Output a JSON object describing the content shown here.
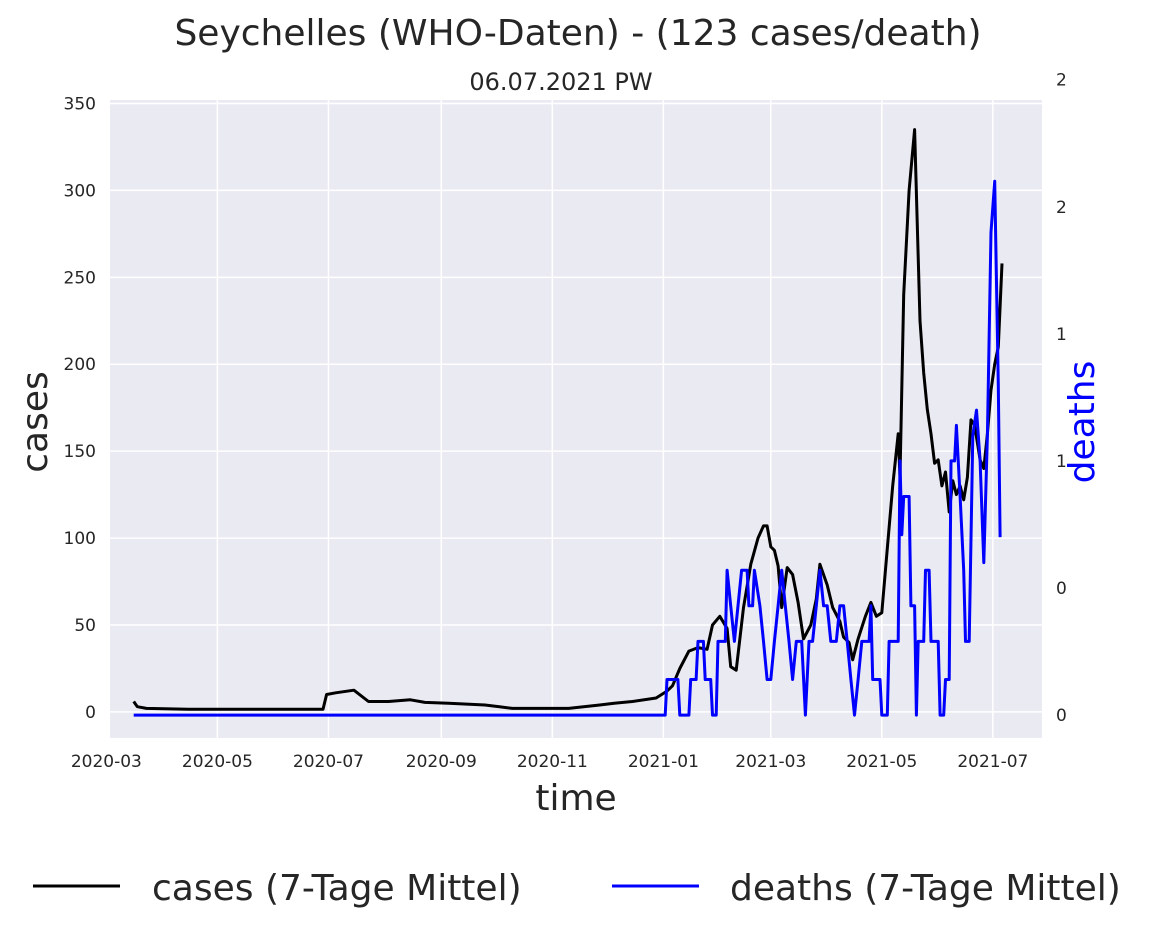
{
  "chart_data": {
    "type": "line",
    "title": "Seychelles (WHO-Daten) - (123 cases/death)",
    "subtitle": "06.07.2021 PW",
    "xlabel": "time",
    "ylabel": "cases",
    "y2label": "deaths",
    "grid": true,
    "legend_placement": "bottom",
    "xlim": [
      "2020-03-03",
      "2021-07-28"
    ],
    "ylim": [
      -15,
      352
    ],
    "y2lim": [
      -0.09,
      2.42
    ],
    "x_ticks": [
      "2020-03",
      "2020-05",
      "2020-07",
      "2020-09",
      "2020-11",
      "2021-01",
      "2021-03",
      "2021-05",
      "2021-07"
    ],
    "y_ticks": [
      "0",
      "50",
      "100",
      "150",
      "200",
      "250",
      "300",
      "350"
    ],
    "y2_ticks": [
      "0",
      "0",
      "1",
      "1",
      "2",
      "2"
    ],
    "y2_tick_values": [
      0,
      0.5,
      1.0,
      1.5,
      2.0,
      2.5
    ],
    "colors": {
      "cases": "#000000",
      "deaths": "#0000ff",
      "plot_bg": "#eaeaf2",
      "grid": "#ffffff"
    },
    "series": [
      {
        "name": "cases (7-Tage Mittel)",
        "axis": "left",
        "points": [
          [
            "2020-03-16",
            6
          ],
          [
            "2020-03-18",
            3
          ],
          [
            "2020-03-23",
            2
          ],
          [
            "2020-04-15",
            1.5
          ],
          [
            "2020-06-28",
            1.5
          ],
          [
            "2020-06-30",
            10
          ],
          [
            "2020-07-05",
            11
          ],
          [
            "2020-07-15",
            12.5
          ],
          [
            "2020-07-23",
            6
          ],
          [
            "2020-08-03",
            6
          ],
          [
            "2020-08-15",
            7
          ],
          [
            "2020-08-23",
            5.5
          ],
          [
            "2020-09-05",
            5
          ],
          [
            "2020-09-25",
            4
          ],
          [
            "2020-10-03",
            3
          ],
          [
            "2020-10-10",
            2
          ],
          [
            "2020-10-25",
            2
          ],
          [
            "2020-11-10",
            2
          ],
          [
            "2020-11-27",
            4
          ],
          [
            "2020-12-05",
            5
          ],
          [
            "2020-12-15",
            6
          ],
          [
            "2020-12-28",
            8
          ],
          [
            "2021-01-03",
            12
          ],
          [
            "2021-01-06",
            15
          ],
          [
            "2021-01-10",
            25
          ],
          [
            "2021-01-15",
            35
          ],
          [
            "2021-01-20",
            37
          ],
          [
            "2021-01-25",
            36
          ],
          [
            "2021-01-28",
            50
          ],
          [
            "2021-02-01",
            55
          ],
          [
            "2021-02-05",
            48
          ],
          [
            "2021-02-07",
            26
          ],
          [
            "2021-02-10",
            24
          ],
          [
            "2021-02-14",
            60
          ],
          [
            "2021-02-18",
            85
          ],
          [
            "2021-02-22",
            100
          ],
          [
            "2021-02-25",
            107
          ],
          [
            "2021-02-27",
            107
          ],
          [
            "2021-03-01",
            95
          ],
          [
            "2021-03-03",
            93
          ],
          [
            "2021-03-05",
            84
          ],
          [
            "2021-03-07",
            60
          ],
          [
            "2021-03-10",
            83
          ],
          [
            "2021-03-13",
            79
          ],
          [
            "2021-03-16",
            63
          ],
          [
            "2021-03-19",
            42
          ],
          [
            "2021-03-23",
            50
          ],
          [
            "2021-03-26",
            65
          ],
          [
            "2021-03-28",
            85
          ],
          [
            "2021-04-01",
            73
          ],
          [
            "2021-04-04",
            60
          ],
          [
            "2021-04-08",
            52
          ],
          [
            "2021-04-10",
            43
          ],
          [
            "2021-04-13",
            40
          ],
          [
            "2021-04-15",
            30
          ],
          [
            "2021-04-18",
            42
          ],
          [
            "2021-04-22",
            55
          ],
          [
            "2021-04-25",
            63
          ],
          [
            "2021-04-28",
            55
          ],
          [
            "2021-05-01",
            57
          ],
          [
            "2021-05-04",
            94
          ],
          [
            "2021-05-07",
            130
          ],
          [
            "2021-05-10",
            160
          ],
          [
            "2021-05-11",
            135
          ],
          [
            "2021-05-13",
            240
          ],
          [
            "2021-05-16",
            300
          ],
          [
            "2021-05-19",
            335
          ],
          [
            "2021-05-22",
            225
          ],
          [
            "2021-05-24",
            195
          ],
          [
            "2021-05-26",
            174
          ],
          [
            "2021-05-28",
            160
          ],
          [
            "2021-05-30",
            143
          ],
          [
            "2021-06-01",
            145
          ],
          [
            "2021-06-03",
            130
          ],
          [
            "2021-06-05",
            138
          ],
          [
            "2021-06-07",
            115
          ],
          [
            "2021-06-09",
            133
          ],
          [
            "2021-06-11",
            125
          ],
          [
            "2021-06-13",
            130
          ],
          [
            "2021-06-15",
            122
          ],
          [
            "2021-06-17",
            135
          ],
          [
            "2021-06-19",
            168
          ],
          [
            "2021-06-21",
            165
          ],
          [
            "2021-06-24",
            145
          ],
          [
            "2021-06-26",
            140
          ],
          [
            "2021-06-28",
            160
          ],
          [
            "2021-06-30",
            185
          ],
          [
            "2021-07-02",
            200
          ],
          [
            "2021-07-04",
            210
          ],
          [
            "2021-07-06",
            258
          ]
        ]
      },
      {
        "name": "deaths (7-Tage Mittel)",
        "axis": "right",
        "points": [
          [
            "2020-03-16",
            0
          ],
          [
            "2021-01-02",
            0
          ],
          [
            "2021-01-03",
            0.14
          ],
          [
            "2021-01-09",
            0.14
          ],
          [
            "2021-01-10",
            0
          ],
          [
            "2021-01-15",
            0
          ],
          [
            "2021-01-16",
            0.14
          ],
          [
            "2021-01-19",
            0.14
          ],
          [
            "2021-01-20",
            0.29
          ],
          [
            "2021-01-23",
            0.29
          ],
          [
            "2021-01-24",
            0.14
          ],
          [
            "2021-01-27",
            0.14
          ],
          [
            "2021-01-28",
            0
          ],
          [
            "2021-01-30",
            0
          ],
          [
            "2021-01-31",
            0.29
          ],
          [
            "2021-02-04",
            0.29
          ],
          [
            "2021-02-05",
            0.57
          ],
          [
            "2021-02-07",
            0.43
          ],
          [
            "2021-02-09",
            0.29
          ],
          [
            "2021-02-11",
            0.43
          ],
          [
            "2021-02-13",
            0.57
          ],
          [
            "2021-02-16",
            0.57
          ],
          [
            "2021-02-17",
            0.43
          ],
          [
            "2021-02-19",
            0.43
          ],
          [
            "2021-02-20",
            0.57
          ],
          [
            "2021-02-23",
            0.43
          ],
          [
            "2021-02-25",
            0.29
          ],
          [
            "2021-02-27",
            0.14
          ],
          [
            "2021-03-01",
            0.14
          ],
          [
            "2021-03-03",
            0.29
          ],
          [
            "2021-03-05",
            0.43
          ],
          [
            "2021-03-07",
            0.57
          ],
          [
            "2021-03-09",
            0.43
          ],
          [
            "2021-03-11",
            0.29
          ],
          [
            "2021-03-13",
            0.14
          ],
          [
            "2021-03-15",
            0.29
          ],
          [
            "2021-03-18",
            0.29
          ],
          [
            "2021-03-20",
            0
          ],
          [
            "2021-03-22",
            0.29
          ],
          [
            "2021-03-24",
            0.29
          ],
          [
            "2021-03-26",
            0.43
          ],
          [
            "2021-03-28",
            0.57
          ],
          [
            "2021-03-30",
            0.43
          ],
          [
            "2021-04-01",
            0.43
          ],
          [
            "2021-04-03",
            0.29
          ],
          [
            "2021-04-06",
            0.29
          ],
          [
            "2021-04-08",
            0.43
          ],
          [
            "2021-04-10",
            0.43
          ],
          [
            "2021-04-12",
            0.29
          ],
          [
            "2021-04-14",
            0.14
          ],
          [
            "2021-04-16",
            0
          ],
          [
            "2021-04-18",
            0.14
          ],
          [
            "2021-04-20",
            0.29
          ],
          [
            "2021-04-24",
            0.29
          ],
          [
            "2021-04-25",
            0.43
          ],
          [
            "2021-04-26",
            0.14
          ],
          [
            "2021-04-30",
            0.14
          ],
          [
            "2021-05-01",
            0
          ],
          [
            "2021-05-04",
            0
          ],
          [
            "2021-05-05",
            0.29
          ],
          [
            "2021-05-10",
            0.29
          ],
          [
            "2021-05-11",
            1.0
          ],
          [
            "2021-05-12",
            0.71
          ],
          [
            "2021-05-13",
            0.86
          ],
          [
            "2021-05-16",
            0.86
          ],
          [
            "2021-05-17",
            0.43
          ],
          [
            "2021-05-19",
            0.43
          ],
          [
            "2021-05-20",
            0
          ],
          [
            "2021-05-21",
            0.29
          ],
          [
            "2021-05-24",
            0.29
          ],
          [
            "2021-05-25",
            0.57
          ],
          [
            "2021-05-27",
            0.57
          ],
          [
            "2021-05-28",
            0.29
          ],
          [
            "2021-06-01",
            0.29
          ],
          [
            "2021-06-02",
            0
          ],
          [
            "2021-06-04",
            0
          ],
          [
            "2021-06-05",
            0.14
          ],
          [
            "2021-06-07",
            0.14
          ],
          [
            "2021-06-08",
            1.0
          ],
          [
            "2021-06-10",
            1.0
          ],
          [
            "2021-06-11",
            1.14
          ],
          [
            "2021-06-13",
            0.86
          ],
          [
            "2021-06-15",
            0.57
          ],
          [
            "2021-06-16",
            0.29
          ],
          [
            "2021-06-18",
            0.29
          ],
          [
            "2021-06-20",
            1.1
          ],
          [
            "2021-06-22",
            1.2
          ],
          [
            "2021-06-24",
            1.0
          ],
          [
            "2021-06-26",
            0.6
          ],
          [
            "2021-06-28",
            1.1
          ],
          [
            "2021-06-30",
            1.9
          ],
          [
            "2021-07-02",
            2.1
          ],
          [
            "2021-07-04",
            1.3
          ],
          [
            "2021-07-05",
            0.7
          ]
        ]
      }
    ]
  }
}
